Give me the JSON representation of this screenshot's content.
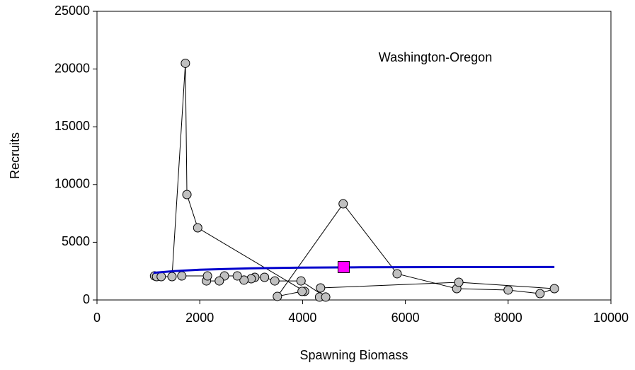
{
  "chart_data": {
    "type": "line",
    "x_label": "Spawning Biomass",
    "y_label": "Recruits",
    "annotation": "Washington-Oregon",
    "xlim": [
      0,
      10000
    ],
    "xticks": [
      0,
      2000,
      4000,
      6000,
      8000,
      10000
    ],
    "ylim": [
      0,
      25000
    ],
    "yticks": [
      0,
      5000,
      10000,
      15000,
      20000,
      25000
    ],
    "grid": false,
    "series": [
      {
        "marker": "circle",
        "color": "#c0c0c0",
        "line_color": "#000000",
        "x": [
          1120,
          1160,
          1250,
          1460,
          1720,
          1750,
          1960,
          4040,
          3990,
          3510,
          4790,
          5840,
          7000,
          8000,
          8620,
          8900,
          7040,
          4350,
          4330,
          4450,
          3970,
          3460,
          3260,
          3070,
          3000,
          2860,
          2730,
          2480,
          2380,
          2130,
          2150,
          1650
        ],
        "values": [
          2080,
          2020,
          2020,
          2020,
          20500,
          9130,
          6250,
          740,
          740,
          310,
          8330,
          2270,
          980,
          860,
          550,
          980,
          1530,
          1040,
          250,
          250,
          1650,
          1650,
          1960,
          1960,
          1840,
          1720,
          2080,
          2080,
          1650,
          1650,
          2080,
          2080
        ]
      },
      {
        "marker": "none",
        "color": "#0000cc",
        "line_color": "#0000cc",
        "x": [
          1100,
          1500,
          2000,
          3000,
          4000,
          5000,
          6000,
          7000,
          8900
        ],
        "values": [
          2350,
          2500,
          2620,
          2740,
          2800,
          2830,
          2840,
          2850,
          2860
        ]
      },
      {
        "marker": "square",
        "color": "#ff00ff",
        "line_color": "none",
        "x": [
          4800
        ],
        "values": [
          2850
        ]
      }
    ]
  }
}
